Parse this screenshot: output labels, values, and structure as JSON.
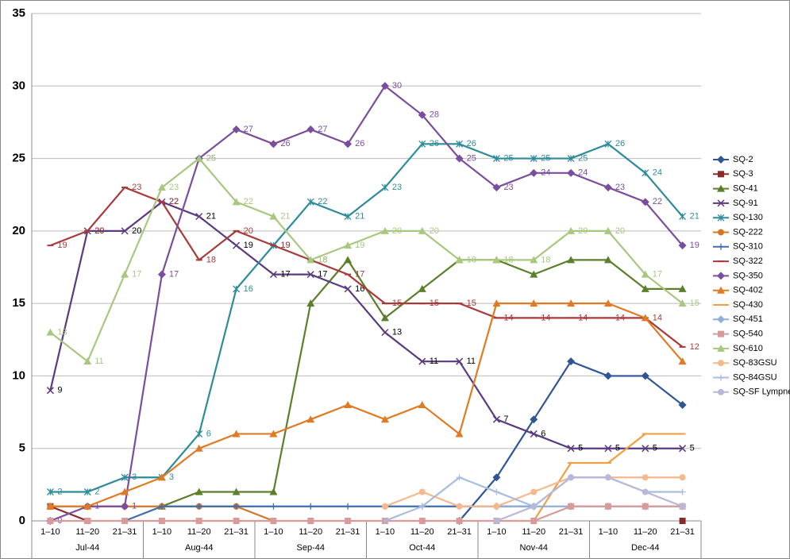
{
  "chart_data": {
    "type": "line",
    "categories": [
      "1–10",
      "11–20",
      "21–31",
      "1–10",
      "11–20",
      "21–31",
      "1–10",
      "11–20",
      "21–31",
      "1–10",
      "11–20",
      "21–31",
      "1–10",
      "11–20",
      "21–31",
      "1–10",
      "11–20",
      "21–31"
    ],
    "groups": [
      "Jul-44",
      "Aug-44",
      "Sep-44",
      "Oct-44",
      "Nov-44",
      "Dec-44"
    ],
    "ylim": [
      0,
      35
    ],
    "yticks": [
      0,
      5,
      10,
      15,
      20,
      25,
      30,
      35
    ],
    "grid": true,
    "legend": "right",
    "series": [
      {
        "name": "SQ-2",
        "color": "#2f5597",
        "marker": "diamond",
        "values": [
          null,
          null,
          null,
          null,
          null,
          null,
          null,
          null,
          null,
          null,
          null,
          0,
          3,
          7,
          11,
          10,
          10,
          8
        ]
      },
      {
        "name": "SQ-3",
        "color": "#8b2a2a",
        "marker": "square",
        "values": [
          1,
          0,
          null,
          null,
          null,
          null,
          null,
          null,
          null,
          null,
          null,
          null,
          null,
          null,
          null,
          null,
          null,
          0
        ]
      },
      {
        "name": "SQ-41",
        "color": "#5b7f2a",
        "marker": "triangle",
        "values": [
          null,
          null,
          null,
          1,
          2,
          2,
          2,
          15,
          18,
          14,
          16,
          18,
          18,
          17,
          18,
          18,
          16,
          16
        ]
      },
      {
        "name": "SQ-91",
        "color": "#5a3a80",
        "marker": "x",
        "labels": true,
        "label_color": "#000000",
        "values": [
          9,
          20,
          20,
          22,
          21,
          19,
          17,
          17,
          16,
          13,
          11,
          11,
          7,
          6,
          5,
          5,
          5,
          5
        ]
      },
      {
        "name": "SQ-130",
        "color": "#2e8b9a",
        "marker": "star",
        "labels": true,
        "values": [
          2,
          2,
          3,
          3,
          6,
          16,
          19,
          22,
          21,
          23,
          26,
          26,
          25,
          25,
          25,
          26,
          24,
          21
        ]
      },
      {
        "name": "SQ-222",
        "color": "#d4762a",
        "marker": "circle",
        "values": [
          1,
          1,
          1,
          1,
          1,
          1,
          0,
          null,
          null,
          null,
          null,
          null,
          null,
          null,
          null,
          null,
          null,
          null
        ]
      },
      {
        "name": "SQ-310",
        "color": "#3b6fb0",
        "marker": "plus",
        "values": [
          null,
          null,
          0,
          1,
          1,
          1,
          1,
          1,
          1,
          1,
          1,
          1,
          1,
          1,
          null,
          null,
          null,
          null
        ]
      },
      {
        "name": "SQ-322",
        "color": "#a83a3a",
        "marker": "dash",
        "labels": true,
        "values": [
          19,
          20,
          23,
          22,
          18,
          20,
          19,
          18,
          17,
          15,
          15,
          15,
          14,
          14,
          14,
          14,
          14,
          12
        ]
      },
      {
        "name": "SQ-350",
        "color": "#7a4e9e",
        "marker": "diamond",
        "labels": true,
        "values": [
          0,
          1,
          1,
          17,
          25,
          27,
          26,
          27,
          26,
          30,
          28,
          25,
          23,
          24,
          24,
          23,
          22,
          19
        ]
      },
      {
        "name": "SQ-402",
        "color": "#e07b24",
        "marker": "triangle",
        "values": [
          1,
          1,
          2,
          3,
          5,
          6,
          6,
          7,
          8,
          7,
          8,
          6,
          15,
          15,
          15,
          15,
          14,
          11
        ]
      },
      {
        "name": "SQ-430",
        "color": "#f0a040",
        "marker": "dash",
        "values": [
          null,
          null,
          null,
          null,
          null,
          null,
          null,
          null,
          null,
          null,
          null,
          null,
          null,
          0,
          4,
          4,
          6,
          6
        ]
      },
      {
        "name": "SQ-451",
        "color": "#8fb0d8",
        "marker": "diamond",
        "values": [
          null,
          null,
          null,
          null,
          null,
          null,
          null,
          null,
          null,
          null,
          null,
          null,
          1,
          1,
          1,
          1,
          1,
          1
        ]
      },
      {
        "name": "SQ-540",
        "color": "#d99a9a",
        "marker": "square",
        "values": [
          0,
          0,
          0,
          0,
          0,
          0,
          0,
          0,
          0,
          0,
          0,
          0,
          0,
          0,
          1,
          1,
          1,
          1
        ]
      },
      {
        "name": "SQ-610",
        "color": "#a8c880",
        "marker": "triangle",
        "labels": true,
        "values": [
          13,
          11,
          17,
          23,
          25,
          22,
          21,
          18,
          19,
          20,
          20,
          18,
          18,
          18,
          20,
          20,
          17,
          15
        ]
      },
      {
        "name": "SQ-83GSU",
        "color": "#f7b88e",
        "marker": "circle",
        "values": [
          null,
          null,
          null,
          null,
          null,
          null,
          null,
          null,
          null,
          1,
          2,
          1,
          1,
          2,
          3,
          3,
          3,
          3
        ]
      },
      {
        "name": "SQ-84GSU",
        "color": "#a7bde0",
        "marker": "plus",
        "values": [
          null,
          null,
          null,
          null,
          null,
          null,
          null,
          null,
          null,
          0,
          1,
          3,
          2,
          1,
          3,
          3,
          2,
          2
        ]
      },
      {
        "name": "SQ-SF Lympne",
        "color": "#b8b8d8",
        "marker": "circle",
        "values": [
          null,
          null,
          null,
          null,
          null,
          null,
          null,
          null,
          null,
          null,
          null,
          null,
          0,
          1,
          3,
          3,
          2,
          1
        ]
      }
    ]
  }
}
